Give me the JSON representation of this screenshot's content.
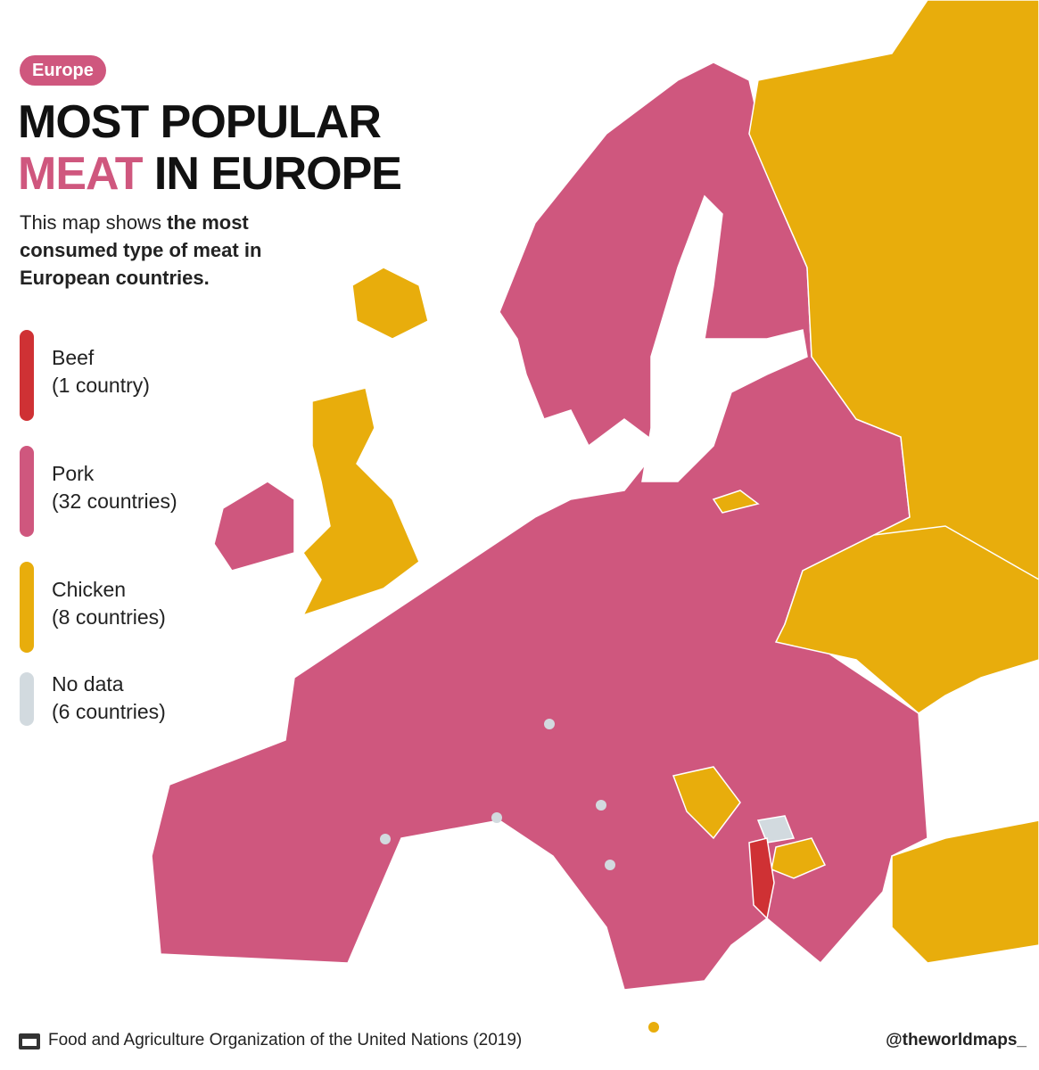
{
  "header": {
    "badge": "Europe",
    "title_line1": "MOST POPULAR",
    "title_highlight": "MEAT",
    "title_rest": "IN EUROPE",
    "subtitle_plain": "This map shows",
    "subtitle_bold": "the most consumed type of meat in European countries."
  },
  "legend": [
    {
      "label": "Beef",
      "count": "(1 country)",
      "color": "#cf3134"
    },
    {
      "label": "Pork",
      "count": "(32 countries)",
      "color": "#cf577e"
    },
    {
      "label": "Chicken",
      "count": "(8 countries)",
      "color": "#e8ad0c"
    },
    {
      "label": "No data",
      "count": "(6 countries)",
      "color": "#d2dadf"
    }
  ],
  "footer": {
    "source": "Food and Agriculture Organization of the United Nations (2019)",
    "handle": "@theworldmaps_"
  }
}
